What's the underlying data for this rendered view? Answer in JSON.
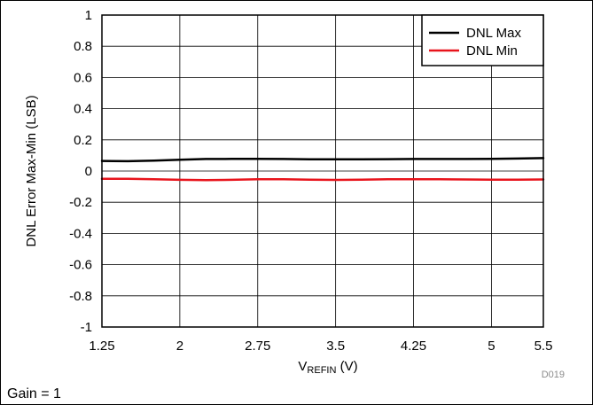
{
  "chart_data": {
    "type": "line",
    "title": "",
    "xlabel_main": "V",
    "xlabel_sub": "REFIN",
    "xlabel_unit": " (V)",
    "ylabel": "DNL Error Max-Min (LSB)",
    "xlim": [
      1.25,
      5.5
    ],
    "ylim": [
      -1,
      1
    ],
    "x_ticks": [
      "1.25",
      "2",
      "2.75",
      "3.5",
      "4.25",
      "5",
      "5.5"
    ],
    "y_ticks": [
      "1",
      "0.8",
      "0.6",
      "0.4",
      "0.2",
      "0",
      "-0.2",
      "-0.4",
      "-0.6",
      "-0.8",
      "-1"
    ],
    "grid": true,
    "legend_position": "top-right",
    "series": [
      {
        "name": "DNL Max",
        "color": "#000000",
        "x": [
          1.25,
          1.5,
          1.75,
          2.0,
          2.25,
          2.5,
          2.75,
          3.0,
          3.25,
          3.5,
          3.75,
          4.0,
          4.25,
          4.5,
          4.75,
          5.0,
          5.25,
          5.5
        ],
        "y": [
          0.065,
          0.063,
          0.067,
          0.073,
          0.077,
          0.078,
          0.078,
          0.077,
          0.075,
          0.075,
          0.075,
          0.076,
          0.077,
          0.077,
          0.077,
          0.078,
          0.08,
          0.083
        ]
      },
      {
        "name": "DNL Min",
        "color": "#e8141c",
        "x": [
          1.25,
          1.5,
          1.75,
          2.0,
          2.25,
          2.5,
          2.75,
          3.0,
          3.25,
          3.5,
          3.75,
          4.0,
          4.25,
          4.5,
          4.75,
          5.0,
          5.25,
          5.5
        ],
        "y": [
          -0.05,
          -0.05,
          -0.052,
          -0.056,
          -0.058,
          -0.056,
          -0.053,
          -0.053,
          -0.055,
          -0.057,
          -0.055,
          -0.053,
          -0.052,
          -0.053,
          -0.054,
          -0.055,
          -0.055,
          -0.054
        ]
      }
    ]
  },
  "figure_code": "D019",
  "condition_note": "Gain = 1"
}
